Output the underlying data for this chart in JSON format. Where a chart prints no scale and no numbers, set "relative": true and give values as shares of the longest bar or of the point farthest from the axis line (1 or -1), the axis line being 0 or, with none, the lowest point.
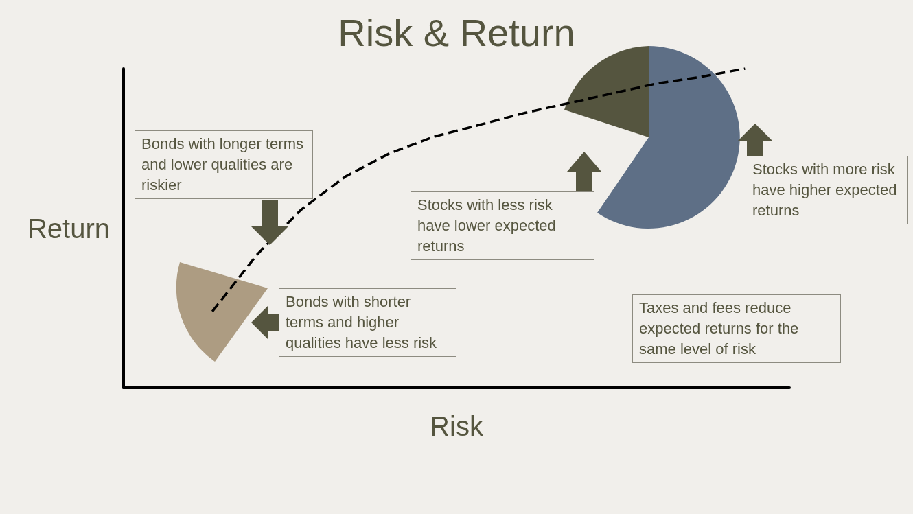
{
  "chart_data": {
    "type": "line",
    "title": "Risk & Return",
    "xlabel": "Risk",
    "ylabel": "Return",
    "relative": true,
    "line_style": "dashed",
    "marker": "none",
    "color": "#000000",
    "categories": [
      null,
      null,
      null,
      null,
      null,
      null,
      null,
      null,
      null,
      null,
      null,
      null,
      null,
      null,
      null,
      null
    ],
    "values": [
      null,
      null,
      0.239,
      0.416,
      0.558,
      0.662,
      0.735,
      0.787,
      0.823,
      0.86,
      0.891,
      0.922,
      0.953,
      0.974,
      1,
      null
    ],
    "annotations": [
      "Bonds with longer terms and lower qualities are riskier",
      "Stocks with less risk have lower expected returns",
      "Stocks with more risk have higher expected returns",
      "Bonds with shorter terms and higher qualities have less risk",
      "Taxes and fees reduce expected returns for the same level of risk"
    ]
  }
}
